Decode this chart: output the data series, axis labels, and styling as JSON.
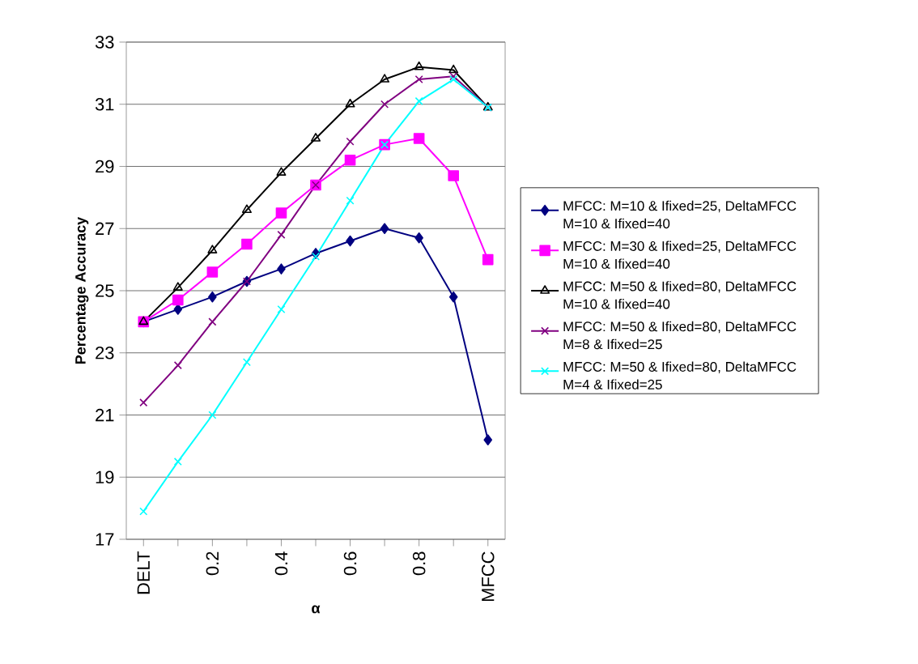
{
  "chart_data": {
    "type": "line",
    "xlabel": "α",
    "ylabel": "Percentage Accuracy",
    "categories": [
      "DELT",
      null,
      "0.2",
      null,
      "0.4",
      null,
      "0.6",
      null,
      "0.8",
      null,
      "MFCC"
    ],
    "ylim": [
      17,
      33
    ],
    "yticks": [
      17,
      19,
      21,
      23,
      25,
      27,
      29,
      31,
      33
    ],
    "grid": "y",
    "legend": "right",
    "series": [
      {
        "name": "MFCC: M=10 & Ifixed=25, DeltaMFCC M=10 & Ifixed=40",
        "color": "#000080",
        "marker": "diamond",
        "values": [
          24.0,
          24.4,
          24.8,
          25.3,
          25.7,
          26.2,
          26.6,
          27.0,
          26.7,
          24.8,
          20.2
        ]
      },
      {
        "name": "MFCC: M=30 & Ifixed=25, DeltaMFCC M=10 & Ifixed=40",
        "color": "#ff00ff",
        "marker": "square",
        "values": [
          24.0,
          24.7,
          25.6,
          26.5,
          27.5,
          28.4,
          29.2,
          29.7,
          29.9,
          28.7,
          26.0
        ]
      },
      {
        "name": "MFCC: M=50 & Ifixed=80, DeltaMFCC M=10 & Ifixed=40",
        "color": "#000000",
        "marker": "triangle",
        "values": [
          24.0,
          25.1,
          26.3,
          27.6,
          28.8,
          29.9,
          31.0,
          31.8,
          32.2,
          32.1,
          30.9
        ]
      },
      {
        "name": "MFCC: M=50 & Ifixed=80, DeltaMFCC M=8 & Ifixed=25",
        "color": "#800080",
        "marker": "cross",
        "values": [
          21.4,
          22.6,
          24.0,
          25.3,
          26.8,
          28.4,
          29.8,
          31.0,
          31.8,
          31.9,
          30.9
        ]
      },
      {
        "name": "MFCC: M=50 & Ifixed=80, DeltaMFCC M=4 & Ifixed=25",
        "color": "#00ffff",
        "marker": "cross",
        "values": [
          17.9,
          19.5,
          21.0,
          22.7,
          24.4,
          26.1,
          27.9,
          29.7,
          31.1,
          31.8,
          30.9
        ]
      }
    ]
  }
}
